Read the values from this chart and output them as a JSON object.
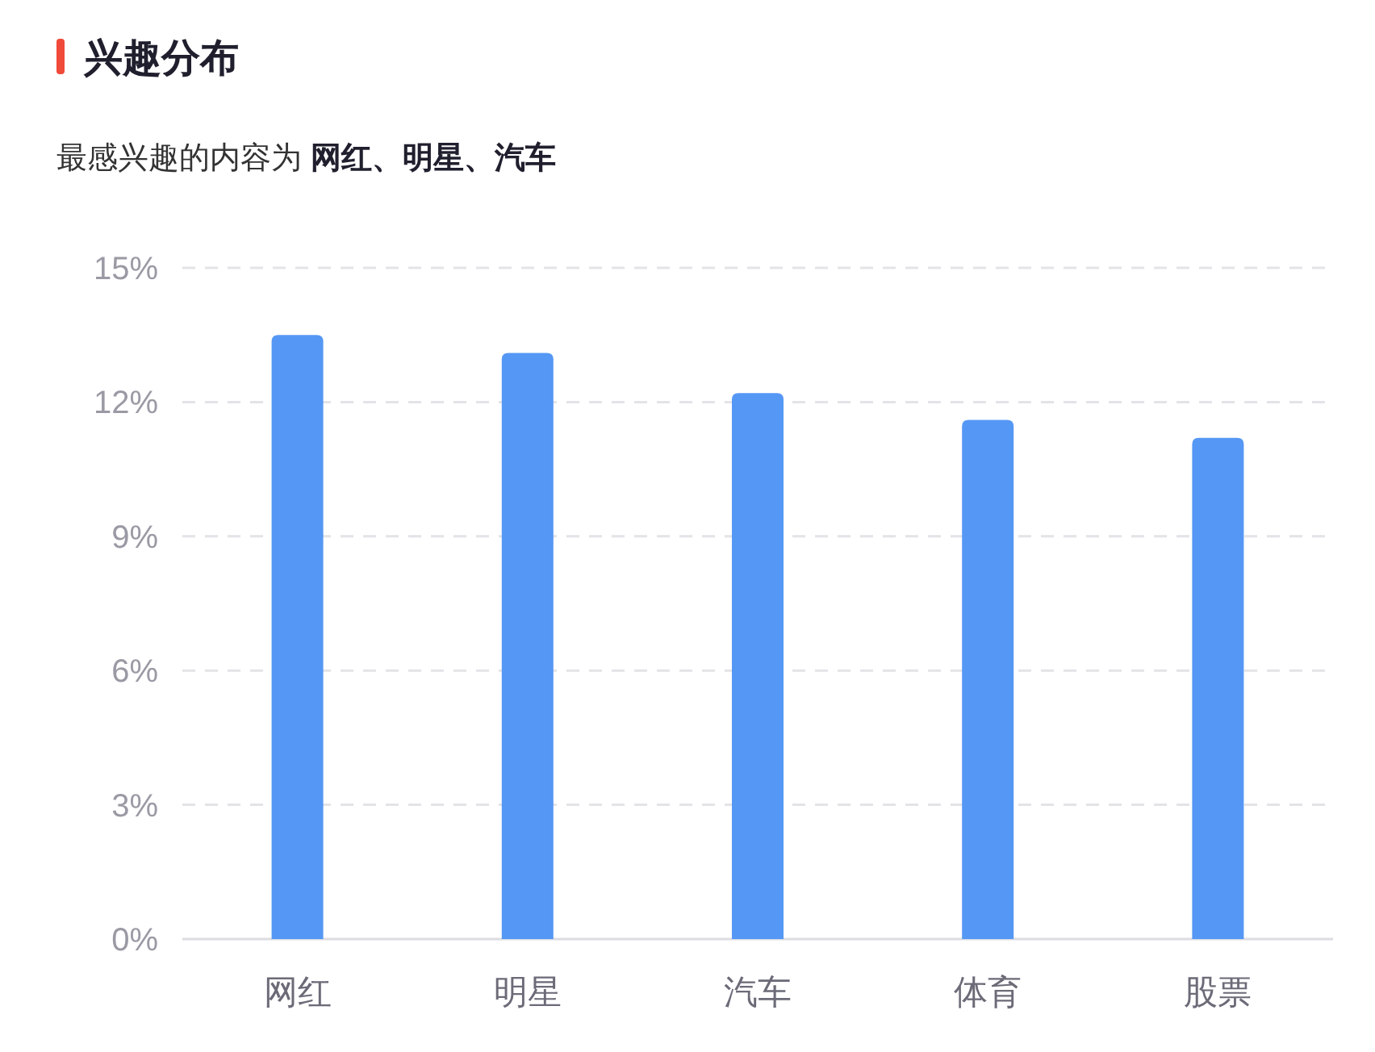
{
  "chart_data": {
    "type": "bar",
    "title": "兴趣分布",
    "subtitle": "最感兴趣的内容为 网红、明星、汽车",
    "categories": [
      "网红",
      "明星",
      "汽车",
      "体育",
      "股票"
    ],
    "values": [
      13.5,
      13.1,
      12.2,
      11.6,
      11.2
    ],
    "color": "#5597f4",
    "ylim": [
      0,
      15
    ],
    "yticks": [
      {
        "value": 0,
        "label": "0%"
      },
      {
        "value": 3,
        "label": "3%"
      },
      {
        "value": 6,
        "label": "6%"
      },
      {
        "value": 9,
        "label": "9%"
      },
      {
        "value": 12,
        "label": "12%"
      },
      {
        "value": 15,
        "label": "15%"
      }
    ],
    "grid": "y"
  }
}
